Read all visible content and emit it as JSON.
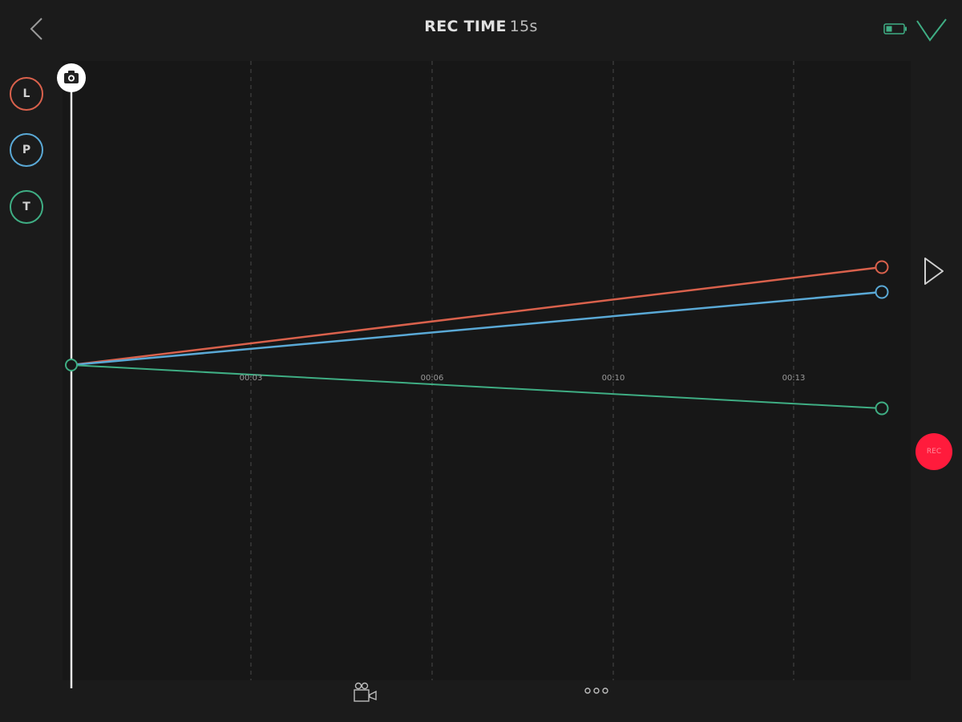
{
  "header": {
    "title_label": "REC TIME",
    "title_value": "15s"
  },
  "axes": [
    {
      "label": "L",
      "color": "#d9614c"
    },
    {
      "label": "P",
      "color": "#5aa9d6"
    },
    {
      "label": "T",
      "color": "#3fae84"
    }
  ],
  "timeline": {
    "ticks": [
      "00:03",
      "00:06",
      "00:10",
      "00:13"
    ]
  },
  "rec_button": {
    "label": "REC"
  },
  "icons": {
    "back": "chevron-left-icon",
    "battery": "battery-icon",
    "confirm": "checkmark-icon",
    "camera": "camera-icon",
    "play": "play-icon",
    "camera_mode": "camera-mode-icon",
    "more": "more-icon"
  },
  "colors": {
    "background": "#1b1b1b",
    "accent_green": "#3fae84",
    "rec_red": "#ff1b3c"
  }
}
